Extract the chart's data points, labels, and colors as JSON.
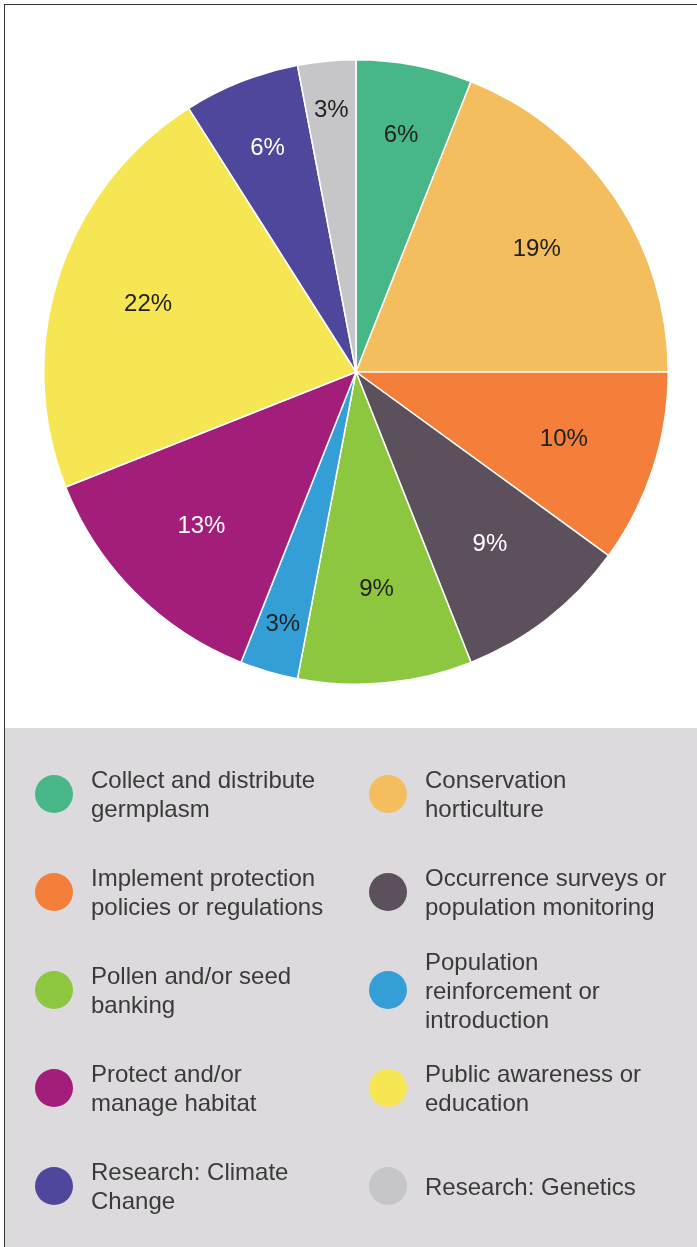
{
  "chart_data": {
    "type": "pie",
    "categories": [
      "Collect and distribute germplasm",
      "Conservation horticulture",
      "Implement protection policies or regulations",
      "Occurrence surveys or population monitoring",
      "Pollen and/or seed banking",
      "Population reinforcement or introduction",
      "Protect and/or manage habitat",
      "Public awareness or education",
      "Research: Climate Change",
      "Research: Genetics"
    ],
    "values": [
      6,
      19,
      10,
      9,
      9,
      3,
      13,
      22,
      6,
      3
    ],
    "colors": [
      "#48b787",
      "#f4bd5d",
      "#f37f3b",
      "#5c505c",
      "#8dc63f",
      "#349fd7",
      "#a31e7a",
      "#f7e654",
      "#4e479b",
      "#c6c6c8"
    ],
    "value_labels": [
      "6%",
      "19%",
      "10%",
      "9%",
      "9%",
      "3%",
      "13%",
      "22%",
      "6%",
      "3%"
    ],
    "legend": "bottom"
  }
}
